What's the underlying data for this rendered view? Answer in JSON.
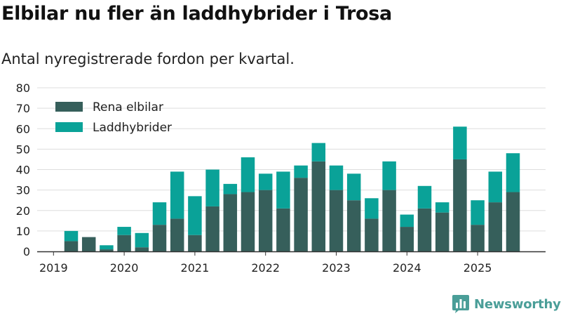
{
  "header": {
    "title": "Elbilar nu fler än laddhybrider i Trosa",
    "subtitle": "Antal nyregistrerade fordon per kvartal."
  },
  "brand": {
    "name": "Newsworthy"
  },
  "colors": {
    "bev": "#365f5b",
    "phev": "#0aa298",
    "grid": "#dddddd",
    "axis": "#333333"
  },
  "chart_data": {
    "type": "bar",
    "stacked": true,
    "title": "Elbilar nu fler än laddhybrider i Trosa",
    "subtitle": "Antal nyregistrerade fordon per kvartal.",
    "xlabel": "",
    "ylabel": "",
    "ylim": [
      0,
      80
    ],
    "yticks": [
      0,
      10,
      20,
      30,
      40,
      50,
      60,
      70,
      80
    ],
    "year_labels": [
      "2019",
      "2020",
      "2021",
      "2022",
      "2023",
      "2024",
      "2025"
    ],
    "categories": [
      "2019-Q2",
      "2019-Q3",
      "2019-Q4",
      "2020-Q1",
      "2020-Q2",
      "2020-Q3",
      "2020-Q4",
      "2021-Q1",
      "2021-Q2",
      "2021-Q3",
      "2021-Q4",
      "2022-Q1",
      "2022-Q2",
      "2022-Q3",
      "2022-Q4",
      "2023-Q1",
      "2023-Q2",
      "2023-Q3",
      "2023-Q4",
      "2024-Q1",
      "2024-Q2",
      "2024-Q3",
      "2024-Q4",
      "2025-Q1",
      "2025-Q2",
      "2025-Q3"
    ],
    "legend_position": "top-left",
    "series": [
      {
        "name": "Rena elbilar",
        "color": "#365f5b",
        "values": [
          5,
          7,
          1,
          8,
          2,
          13,
          16,
          8,
          22,
          28,
          29,
          30,
          21,
          36,
          44,
          30,
          25,
          16,
          30,
          12,
          21,
          19,
          45,
          13,
          24,
          29
        ]
      },
      {
        "name": "Laddhybrider",
        "color": "#0aa298",
        "values": [
          5,
          0,
          2,
          4,
          7,
          11,
          23,
          19,
          18,
          5,
          17,
          8,
          18,
          6,
          9,
          12,
          13,
          10,
          14,
          6,
          11,
          5,
          16,
          12,
          15,
          19
        ]
      }
    ]
  }
}
